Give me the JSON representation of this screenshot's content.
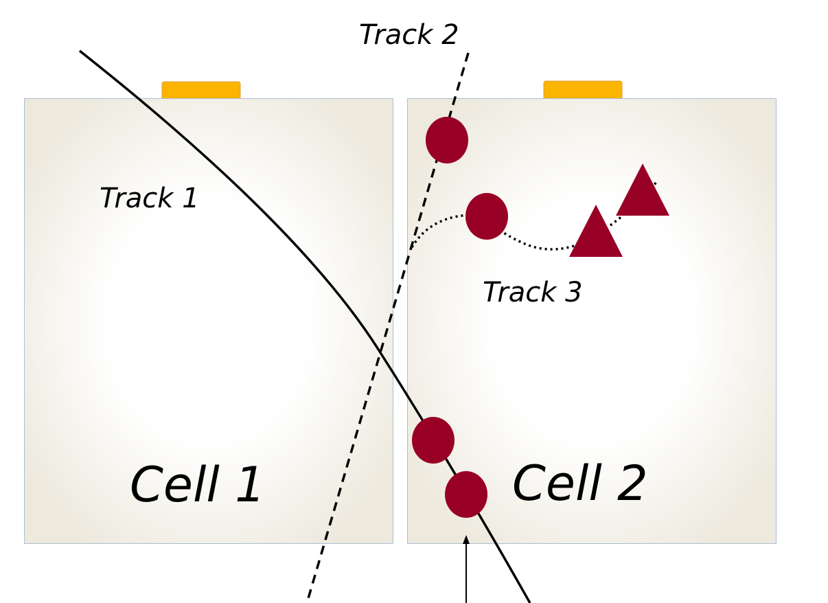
{
  "labels": {
    "cell_1": "Cell 1",
    "cell_2": "Cell 2",
    "track_1": "Track 1",
    "track_2": "Track 2",
    "track_3": "Track 3"
  },
  "colors": {
    "cell_fill_center": "#ffffff",
    "cell_fill_edge": "#ede9dd",
    "cell_border": "#a9bfd6",
    "electrode": "#fbb400",
    "electrode_border": "#d9a040",
    "hit": "#990025",
    "track_line": "#000000"
  },
  "markers": {
    "circle": "circle-hit",
    "triangle": "triangle-hit"
  }
}
